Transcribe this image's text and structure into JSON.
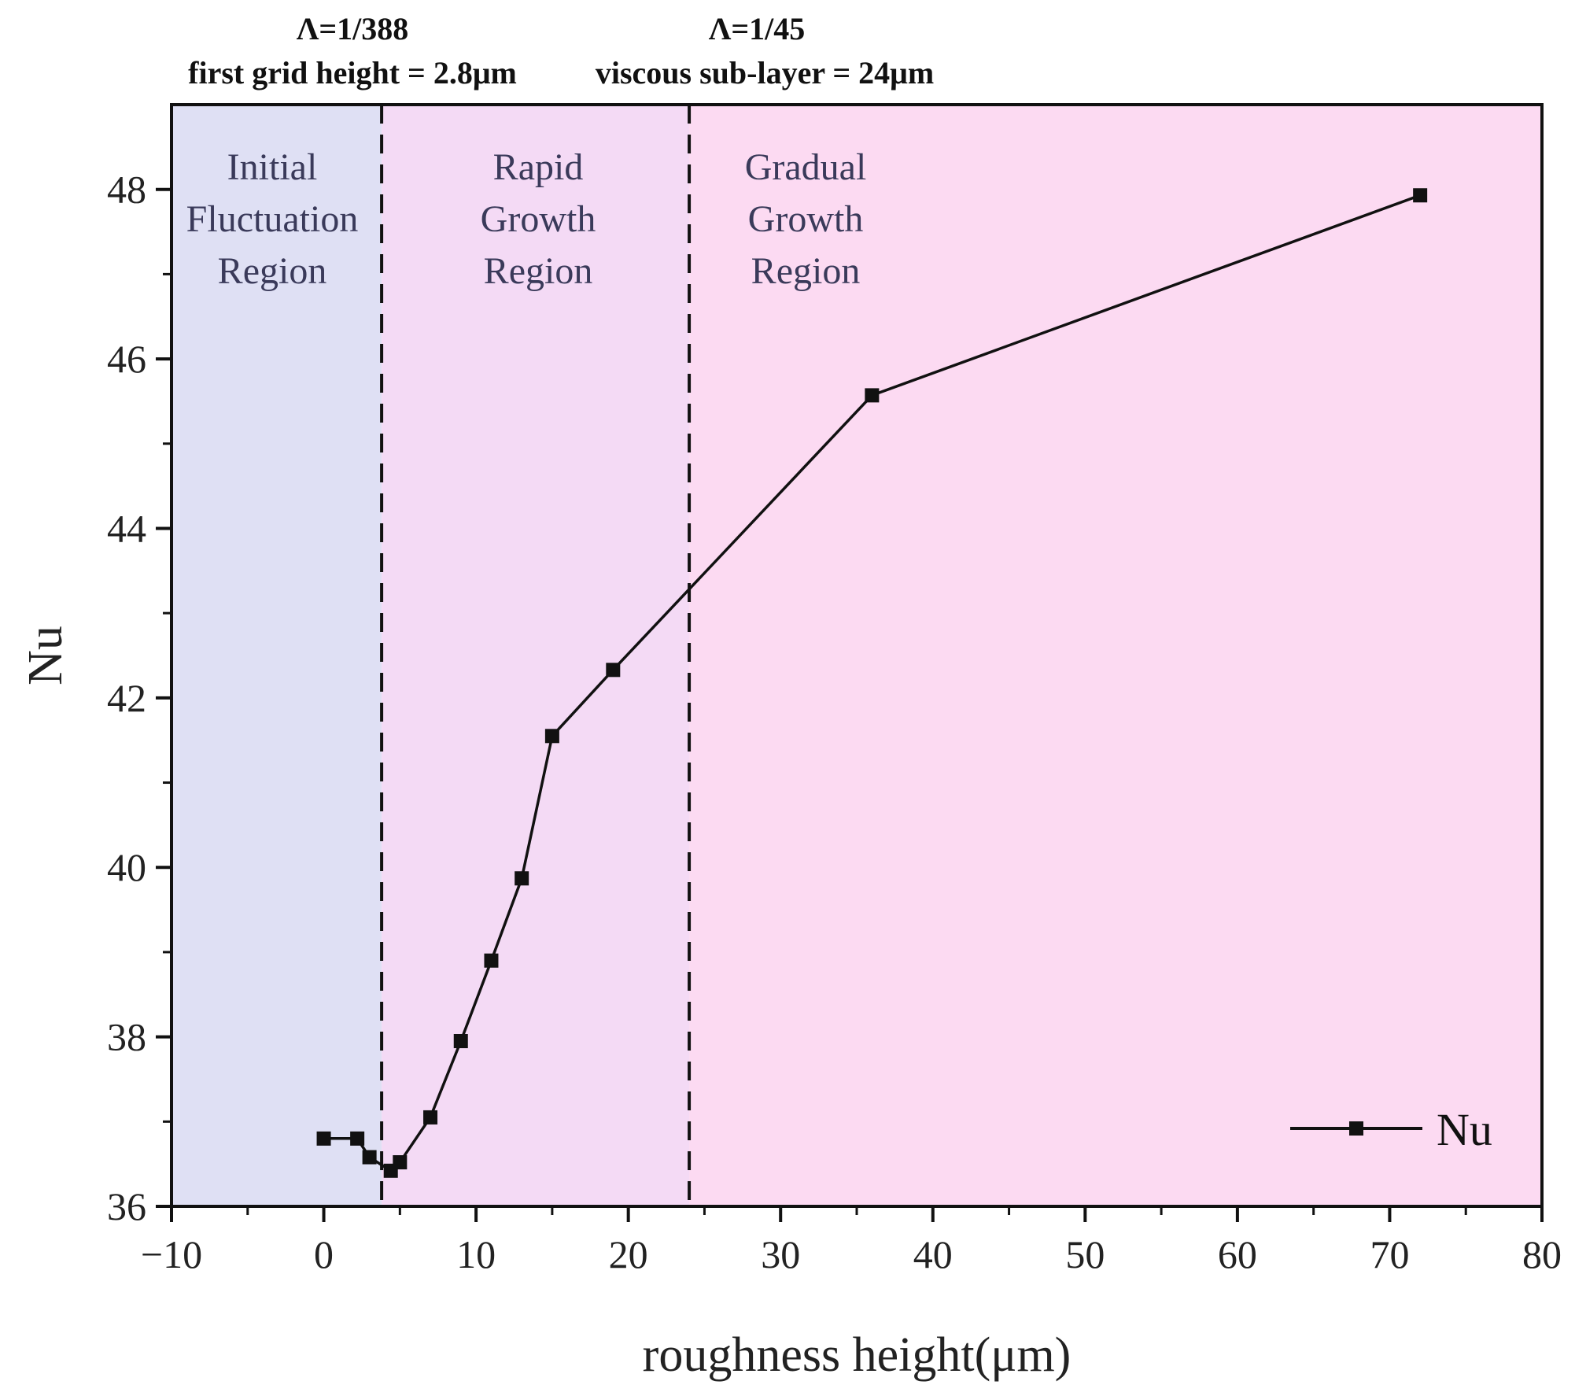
{
  "chart_data": {
    "type": "line",
    "title": "",
    "xlabel": "roughness height(μm)",
    "ylabel": "Nu",
    "xlim": [
      -10,
      80
    ],
    "ylim": [
      36,
      49
    ],
    "x_ticks": [
      -10,
      0,
      10,
      20,
      30,
      40,
      50,
      60,
      70,
      80
    ],
    "x_tick_labels": [
      "−10",
      "0",
      "10",
      "20",
      "30",
      "40",
      "50",
      "60",
      "70",
      "80"
    ],
    "y_ticks": [
      36,
      38,
      40,
      42,
      44,
      46,
      48
    ],
    "y_tick_labels": [
      "36",
      "38",
      "40",
      "42",
      "44",
      "46",
      "48"
    ],
    "grid": false,
    "legend": {
      "position": "bottom-right",
      "entries": [
        "Nu"
      ]
    },
    "series": [
      {
        "name": "Nu",
        "color": "#111111",
        "marker": "square",
        "points": [
          {
            "x": 0,
            "y": 36.8
          },
          {
            "x": 2.2,
            "y": 36.8
          },
          {
            "x": 3.0,
            "y": 36.58
          },
          {
            "x": 4.4,
            "y": 36.42
          },
          {
            "x": 5.0,
            "y": 36.52
          },
          {
            "x": 7.0,
            "y": 37.05
          },
          {
            "x": 9.0,
            "y": 37.95
          },
          {
            "x": 11.0,
            "y": 38.9
          },
          {
            "x": 13.0,
            "y": 39.87
          },
          {
            "x": 15.0,
            "y": 41.55
          },
          {
            "x": 19.0,
            "y": 42.33
          },
          {
            "x": 36.0,
            "y": 45.57
          },
          {
            "x": 72.0,
            "y": 47.93
          }
        ]
      }
    ],
    "reference_lines": [
      {
        "x": 3.8,
        "style": "dashed"
      },
      {
        "x": 24.0,
        "style": "dashed"
      }
    ],
    "regions": [
      {
        "x0": -10,
        "x1": 3.8,
        "color": "#dfe0f4",
        "label_lines": [
          "Initial",
          "Fluctuation",
          "Region"
        ]
      },
      {
        "x0": 3.8,
        "x1": 24.0,
        "color": "#f4daf5",
        "label_lines": [
          "Rapid",
          "Growth",
          "Region"
        ]
      },
      {
        "x0": 24.0,
        "x1": 80,
        "color": "#fcdaf2",
        "label_lines": [
          "Gradual",
          "Growth",
          "Region"
        ]
      }
    ],
    "top_annotations": [
      {
        "lines": [
          "Λ=1/388",
          "first grid height = 2.8μm"
        ]
      },
      {
        "lines": [
          "Λ=1/45",
          "viscous sub-layer = 24μm"
        ]
      }
    ]
  }
}
